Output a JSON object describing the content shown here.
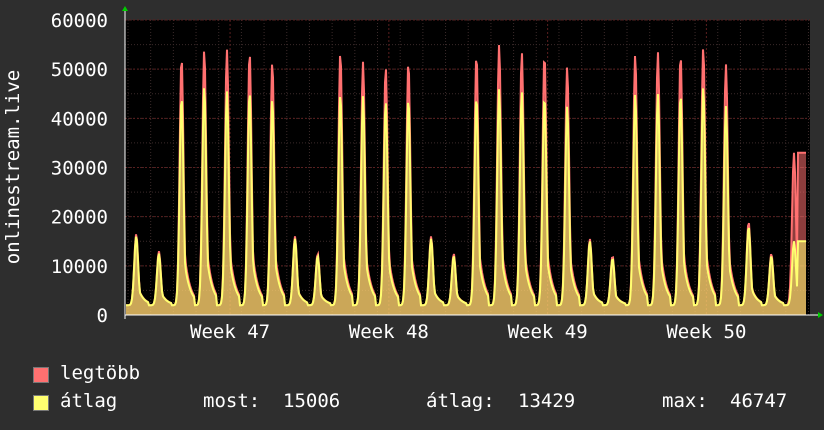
{
  "chart_data": {
    "type": "area",
    "ylabel": "onlinestream.live",
    "ylim": [
      0,
      60000
    ],
    "yticks": [
      0,
      10000,
      20000,
      30000,
      40000,
      50000,
      60000
    ],
    "xticks": [
      "Week 47",
      "Week 48",
      "Week 49",
      "Week 50"
    ],
    "grid": true,
    "colors": {
      "background": "#2e2e2e",
      "plot": "#000000",
      "grid_major": "#5a1f1f",
      "grid_minor": "#3a2a2a",
      "axis": "#ffffff",
      "series_max": "#ff7070",
      "series_avg": "#ffff70"
    },
    "series": [
      {
        "name": "legtöbb",
        "daily_peaks": [
          16500,
          13000,
          52500,
          54000,
          54000,
          53500,
          51500,
          16000,
          12500,
          53500,
          51500,
          50500,
          51500,
          16000,
          12500,
          53000,
          55000,
          53500,
          53000,
          50500,
          15500,
          12000,
          53000,
          53500,
          53000,
          54500,
          51000,
          19000,
          12500,
          33000
        ]
      },
      {
        "name": "átlag",
        "daily_peaks": [
          16000,
          12500,
          44500,
          46500,
          45500,
          45500,
          44000,
          15500,
          12000,
          45000,
          44500,
          43500,
          44000,
          15500,
          12000,
          44500,
          46000,
          45500,
          44500,
          42500,
          15000,
          11500,
          45000,
          45000,
          45000,
          46500,
          42500,
          18000,
          12000,
          15000
        ]
      }
    ]
  },
  "legend": {
    "max_label": "legtöbb",
    "avg_label": "átlag",
    "now_label": "most:",
    "now_value": "15006",
    "avg_stat_label": "átlag:",
    "avg_stat_value": "13429",
    "max_stat_label": "max:",
    "max_stat_value": "46747"
  }
}
